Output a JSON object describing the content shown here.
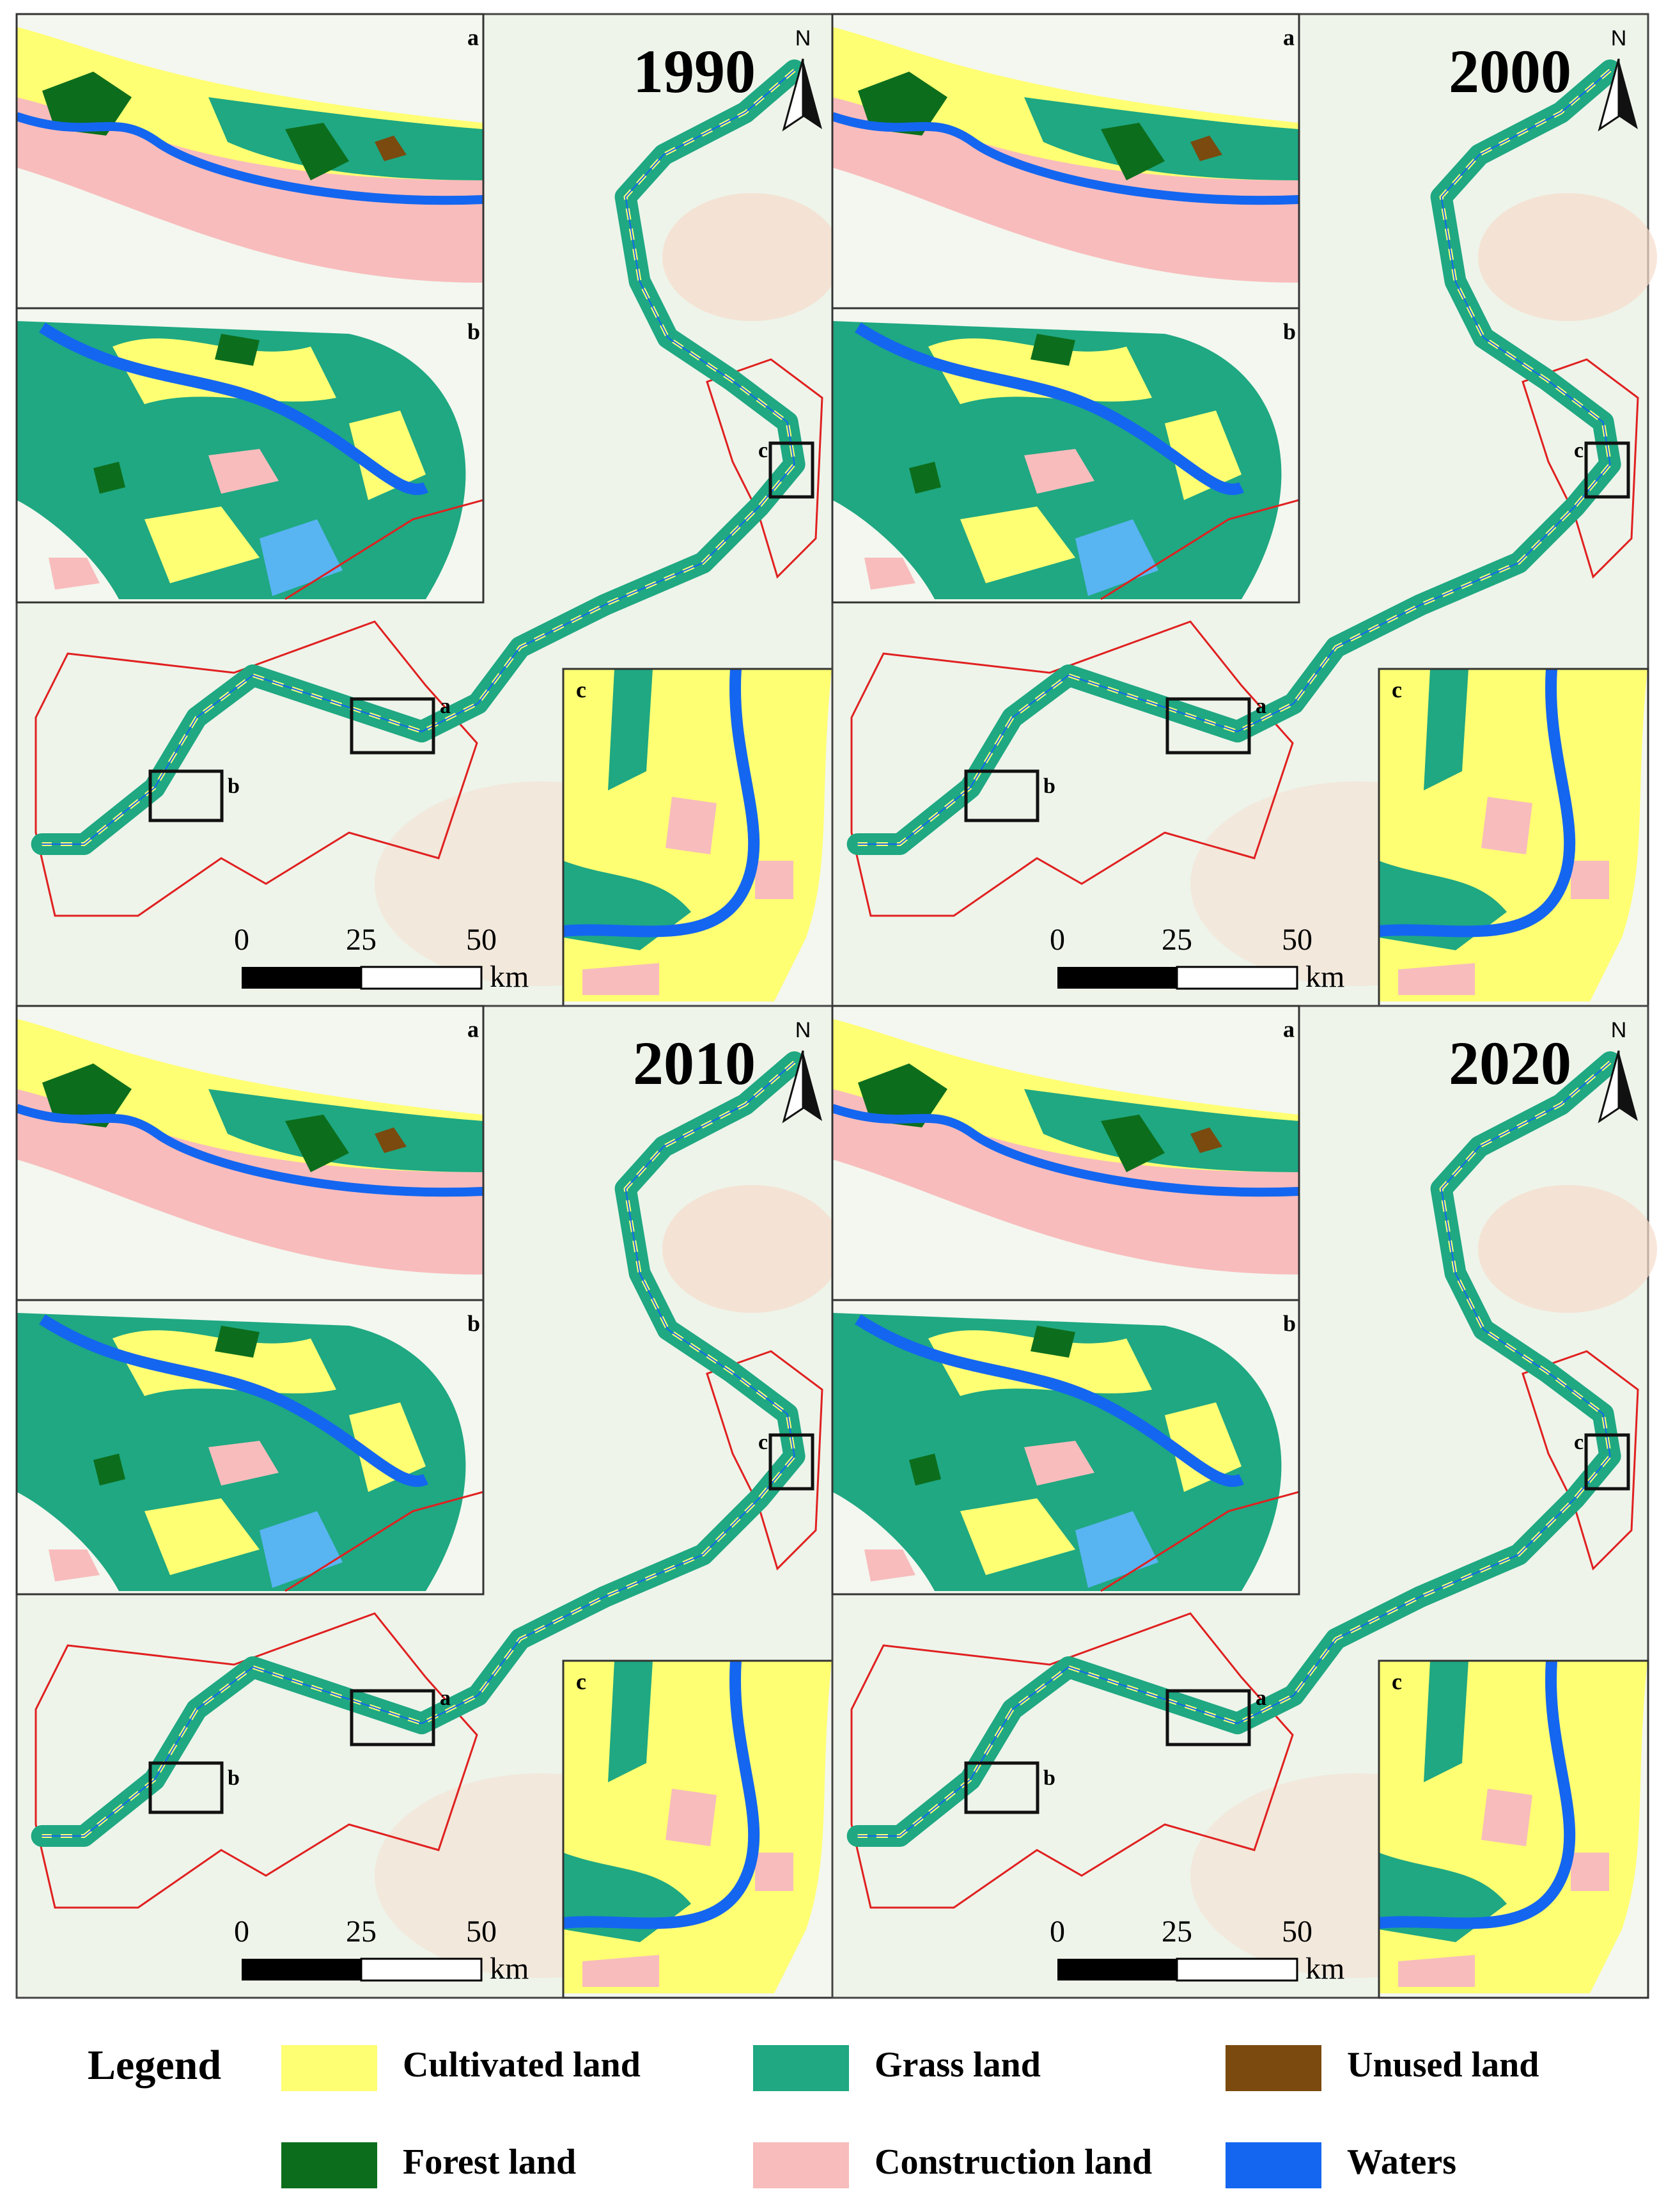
{
  "panels": [
    {
      "year": "1990",
      "north": "N",
      "insets": {
        "a": "a",
        "b": "b",
        "c": "c"
      },
      "scale": {
        "ticks": [
          "0",
          "25",
          "50"
        ],
        "unit": "km"
      }
    },
    {
      "year": "2000",
      "north": "N",
      "insets": {
        "a": "a",
        "b": "b",
        "c": "c"
      },
      "scale": {
        "ticks": [
          "0",
          "25",
          "50"
        ],
        "unit": "km"
      }
    },
    {
      "year": "2010",
      "north": "N",
      "insets": {
        "a": "a",
        "b": "b",
        "c": "c"
      },
      "scale": {
        "ticks": [
          "0",
          "25",
          "50"
        ],
        "unit": "km"
      }
    },
    {
      "year": "2020",
      "north": "N",
      "insets": {
        "a": "a",
        "b": "b",
        "c": "c"
      },
      "scale": {
        "ticks": [
          "0",
          "25",
          "50"
        ],
        "unit": "km"
      }
    }
  ],
  "legend": {
    "title": "Legend",
    "items": [
      {
        "label": "Cultivated land",
        "color": "#ffff73"
      },
      {
        "label": "Grass land",
        "color": "#1fa882"
      },
      {
        "label": "Unused land",
        "color": "#7a4a0e"
      },
      {
        "label": "Forest land",
        "color": "#0c6e1c"
      },
      {
        "label": "Construction land",
        "color": "#f8bcbc"
      },
      {
        "label": "Waters",
        "color": "#1466f0"
      }
    ]
  }
}
